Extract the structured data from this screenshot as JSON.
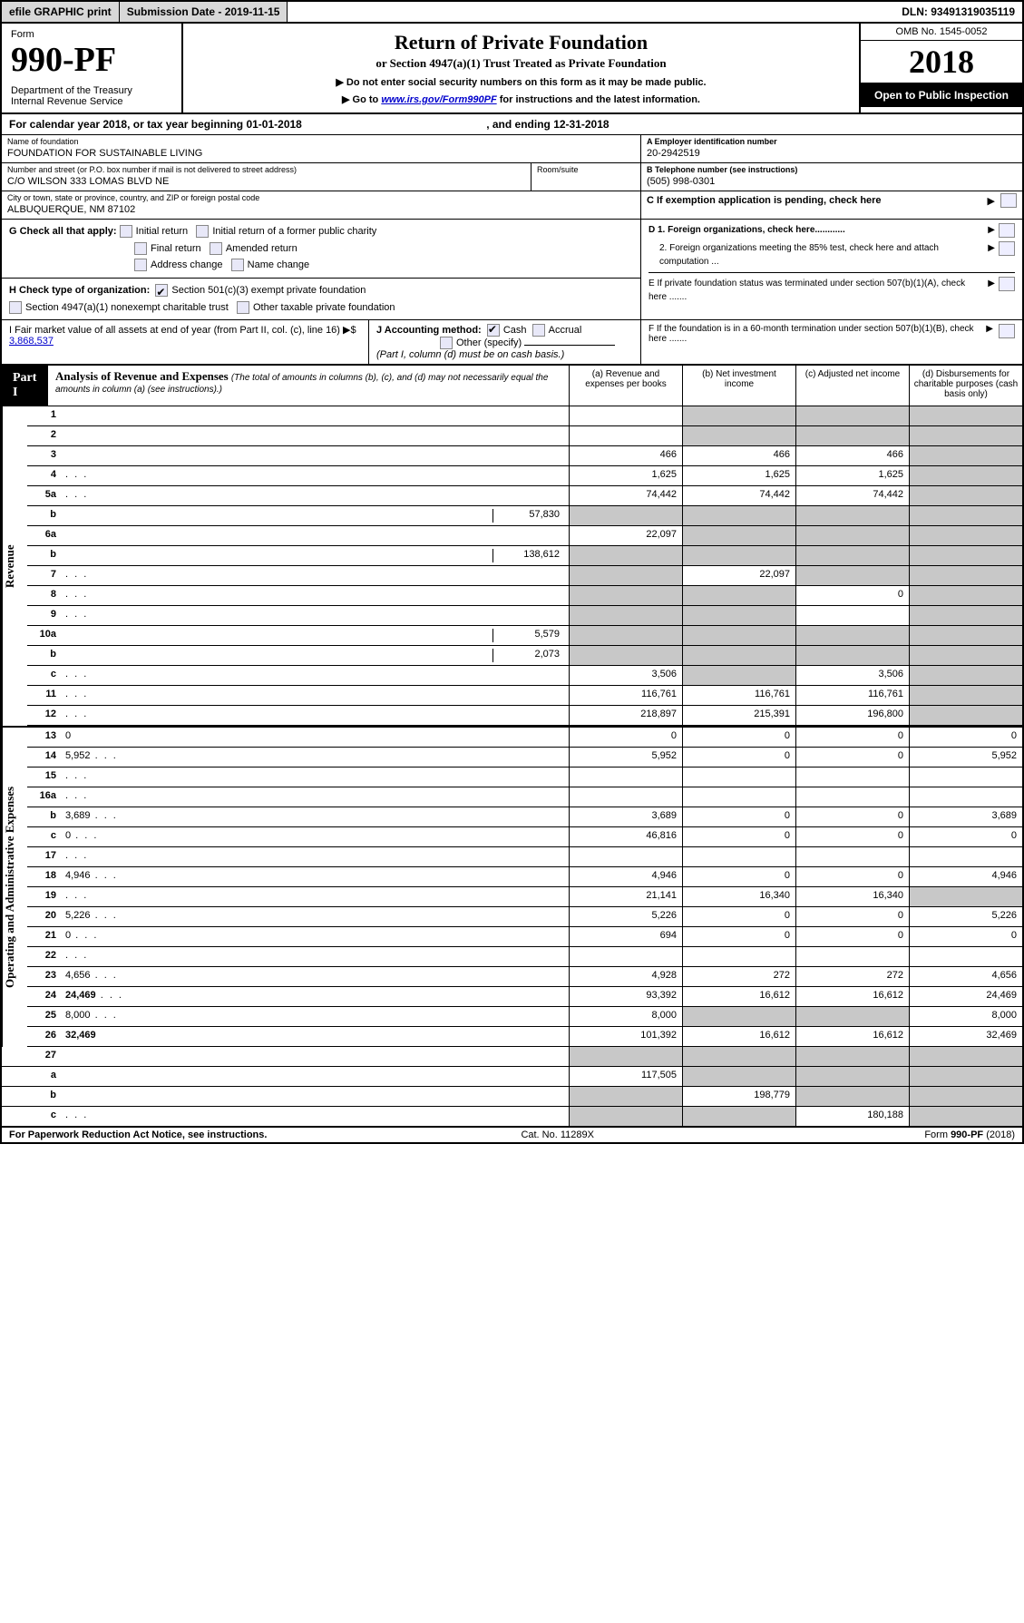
{
  "topbar": {
    "efile": "efile GRAPHIC print",
    "subm_label": "Submission Date - 2019-11-15",
    "dln": "DLN: 93491319035119"
  },
  "header": {
    "form_word": "Form",
    "form_number": "990-PF",
    "dept": "Department of the Treasury",
    "irs": "Internal Revenue Service",
    "title": "Return of Private Foundation",
    "subtitle": "or Section 4947(a)(1) Trust Treated as Private Foundation",
    "note1": "▶ Do not enter social security numbers on this form as it may be made public.",
    "note2a": "▶ Go to ",
    "note2_link": "www.irs.gov/Form990PF",
    "note2b": " for instructions and the latest information.",
    "omb": "OMB No. 1545-0052",
    "year": "2018",
    "open": "Open to Public Inspection"
  },
  "cal_year": {
    "prefix": "For calendar year 2018, or tax year beginning ",
    "begin": "01-01-2018",
    "mid": " , and ending ",
    "end": "12-31-2018"
  },
  "info": {
    "name_lbl": "Name of foundation",
    "name_val": "FOUNDATION FOR SUSTAINABLE LIVING",
    "addr_lbl": "Number and street (or P.O. box number if mail is not delivered to street address)",
    "addr_val": "C/O WILSON 333 LOMAS BLVD NE",
    "room_lbl": "Room/suite",
    "city_lbl": "City or town, state or province, country, and ZIP or foreign postal code",
    "city_val": "ALBUQUERQUE, NM  87102",
    "ein_lbl": "A Employer identification number",
    "ein_val": "20-2942519",
    "tel_lbl": "B Telephone number (see instructions)",
    "tel_val": "(505) 998-0301",
    "c_lbl": "C If exemption application is pending, check here",
    "d1": "D 1. Foreign organizations, check here............",
    "d2": "2. Foreign organizations meeting the 85% test, check here and attach computation ...",
    "e": "E  If private foundation status was terminated under section 507(b)(1)(A), check here .......",
    "f": "F  If the foundation is in a 60-month termination under section 507(b)(1)(B), check here .......",
    "g_lbl": "G Check all that apply:",
    "g_opts": [
      "Initial return",
      "Initial return of a former public charity",
      "Final return",
      "Amended return",
      "Address change",
      "Name change"
    ],
    "h_lbl": "H Check type of organization:",
    "h_opt1": "Section 501(c)(3) exempt private foundation",
    "h_opt2": "Section 4947(a)(1) nonexempt charitable trust",
    "h_opt3": "Other taxable private foundation",
    "i_lbl": "I Fair market value of all assets at end of year (from Part II, col. (c), line 16) ▶$ ",
    "i_val": "3,868,537",
    "j_lbl": "J Accounting method:",
    "j_cash": "Cash",
    "j_accr": "Accrual",
    "j_other": "Other (specify)",
    "j_note": "(Part I, column (d) must be on cash basis.)"
  },
  "part1": {
    "tab": "Part I",
    "title": "Analysis of Revenue and Expenses",
    "sub": "(The total of amounts in columns (b), (c), and (d) may not necessarily equal the amounts in column (a) (see instructions).)",
    "col_a": "(a)   Revenue and expenses per books",
    "col_b": "(b)  Net investment income",
    "col_c": "(c)  Adjusted net income",
    "col_d": "(d)  Disbursements for charitable purposes (cash basis only)"
  },
  "side": {
    "rev": "Revenue",
    "exp": "Operating and Administrative Expenses"
  },
  "rows": {
    "r1": {
      "n": "1",
      "d": "",
      "a": "",
      "b": "",
      "c": "",
      "sb": true,
      "sc": true,
      "sd": true
    },
    "r2": {
      "n": "2",
      "d": "",
      "a": "",
      "b": "",
      "c": "",
      "sb": true,
      "sc": true,
      "sd": true,
      "bold_not": true
    },
    "r3": {
      "n": "3",
      "d": "",
      "a": "466",
      "b": "466",
      "c": "466",
      "sd": true
    },
    "r4": {
      "n": "4",
      "d": "",
      "a": "1,625",
      "b": "1,625",
      "c": "1,625",
      "sd": true,
      "dots": true
    },
    "r5a": {
      "n": "5a",
      "d": "",
      "a": "74,442",
      "b": "74,442",
      "c": "74,442",
      "sd": true,
      "dots": true
    },
    "r5b": {
      "n": "b",
      "d": "",
      "iv": "57,830",
      "a": "",
      "b": "",
      "c": "",
      "sa": true,
      "sb": true,
      "sc": true,
      "sd": true
    },
    "r6a": {
      "n": "6a",
      "d": "",
      "a": "22,097",
      "b": "",
      "c": "",
      "sb": true,
      "sc": true,
      "sd": true
    },
    "r6b": {
      "n": "b",
      "d": "",
      "iv": "138,612",
      "a": "",
      "b": "",
      "c": "",
      "sa": true,
      "sb": true,
      "sc": true,
      "sd": true
    },
    "r7": {
      "n": "7",
      "d": "",
      "a": "",
      "b": "22,097",
      "c": "",
      "sa": true,
      "sc": true,
      "sd": true,
      "dots": true
    },
    "r8": {
      "n": "8",
      "d": "",
      "a": "",
      "b": "",
      "c": "0",
      "sa": true,
      "sb": true,
      "sd": true,
      "dots": true
    },
    "r9": {
      "n": "9",
      "d": "",
      "a": "",
      "b": "",
      "c": "",
      "sa": true,
      "sb": true,
      "sd": true,
      "dots": true
    },
    "r10a": {
      "n": "10a",
      "d": "",
      "iv": "5,579",
      "a": "",
      "b": "",
      "c": "",
      "sa": true,
      "sb": true,
      "sc": true,
      "sd": true
    },
    "r10b": {
      "n": "b",
      "d": "",
      "iv": "2,073",
      "a": "",
      "b": "",
      "c": "",
      "sa": true,
      "sb": true,
      "sc": true,
      "sd": true,
      "dots": true
    },
    "r10c": {
      "n": "c",
      "d": "",
      "a": "3,506",
      "b": "",
      "c": "3,506",
      "sb": true,
      "sd": true,
      "dots": true
    },
    "r11": {
      "n": "11",
      "d": "",
      "a": "116,761",
      "b": "116,761",
      "c": "116,761",
      "sd": true,
      "dots": true
    },
    "r12": {
      "n": "12",
      "d": "",
      "a": "218,897",
      "b": "215,391",
      "c": "196,800",
      "sd": true,
      "bold": true,
      "dots": true
    },
    "r13": {
      "n": "13",
      "d": "0",
      "a": "0",
      "b": "0",
      "c": "0"
    },
    "r14": {
      "n": "14",
      "d": "5,952",
      "a": "5,952",
      "b": "0",
      "c": "0",
      "dots": true
    },
    "r15": {
      "n": "15",
      "d": "",
      "a": "",
      "b": "",
      "c": "",
      "dots": true
    },
    "r16a": {
      "n": "16a",
      "d": "",
      "a": "",
      "b": "",
      "c": "",
      "dots": true
    },
    "r16b": {
      "n": "b",
      "d": "3,689",
      "a": "3,689",
      "b": "0",
      "c": "0",
      "dots": true
    },
    "r16c": {
      "n": "c",
      "d": "0",
      "a": "46,816",
      "b": "0",
      "c": "0",
      "dots": true
    },
    "r17": {
      "n": "17",
      "d": "",
      "a": "",
      "b": "",
      "c": "",
      "dots": true
    },
    "r18": {
      "n": "18",
      "d": "4,946",
      "a": "4,946",
      "b": "0",
      "c": "0",
      "dots": true
    },
    "r19": {
      "n": "19",
      "d": "",
      "a": "21,141",
      "b": "16,340",
      "c": "16,340",
      "sd": true,
      "dots": true
    },
    "r20": {
      "n": "20",
      "d": "5,226",
      "a": "5,226",
      "b": "0",
      "c": "0",
      "dots": true
    },
    "r21": {
      "n": "21",
      "d": "0",
      "a": "694",
      "b": "0",
      "c": "0",
      "dots": true
    },
    "r22": {
      "n": "22",
      "d": "",
      "a": "",
      "b": "",
      "c": "",
      "dots": true
    },
    "r23": {
      "n": "23",
      "d": "4,656",
      "a": "4,928",
      "b": "272",
      "c": "272",
      "dots": true
    },
    "r24": {
      "n": "24",
      "d": "24,469",
      "a": "93,392",
      "b": "16,612",
      "c": "16,612",
      "bold": true,
      "dots": true
    },
    "r25": {
      "n": "25",
      "d": "8,000",
      "a": "8,000",
      "b": "",
      "c": "",
      "sb": true,
      "sc": true,
      "dots": true
    },
    "r26": {
      "n": "26",
      "d": "32,469",
      "a": "101,392",
      "b": "16,612",
      "c": "16,612",
      "bold": true
    },
    "r27": {
      "n": "27",
      "d": "",
      "a": "",
      "b": "",
      "c": "",
      "sa": true,
      "sb": true,
      "sc": true,
      "sd": true
    },
    "r27a": {
      "n": "a",
      "d": "",
      "a": "117,505",
      "b": "",
      "c": "",
      "sb": true,
      "sc": true,
      "sd": true,
      "bold": true
    },
    "r27b": {
      "n": "b",
      "d": "",
      "a": "",
      "b": "198,779",
      "c": "",
      "sa": true,
      "sc": true,
      "sd": true,
      "bold": true
    },
    "r27c": {
      "n": "c",
      "d": "",
      "a": "",
      "b": "",
      "c": "180,188",
      "sa": true,
      "sb": true,
      "sd": true,
      "bold": true,
      "dots": true
    }
  },
  "footer": {
    "left": "For Paperwork Reduction Act Notice, see instructions.",
    "mid": "Cat. No. 11289X",
    "right": "Form 990-PF (2018)"
  }
}
